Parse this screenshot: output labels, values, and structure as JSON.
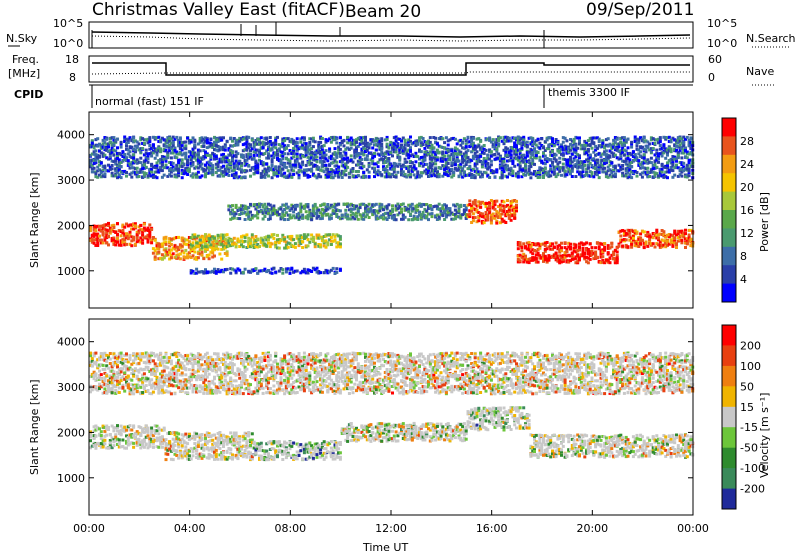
{
  "header": {
    "title": "Christmas Valley East (fitACF)",
    "beam": "Beam 20",
    "date": "09/Sep/2011"
  },
  "strip": {
    "nsky_label": "N.Sky",
    "nsearch_label": "N.Search",
    "nsky_ticks": [
      "10^5",
      "10^0"
    ],
    "nsearch_ticks": [
      "10^5",
      "10^0"
    ],
    "freq_label": [
      "Freq.",
      "[MHz]"
    ],
    "freq_ticks": [
      "18",
      "8"
    ],
    "nave_label": "Nave",
    "nave_ticks": [
      "60",
      "0"
    ],
    "cpid_label": "CPID",
    "cpid_modes": [
      "normal (fast) 151 IF",
      "themis 3300 IF"
    ]
  },
  "colors": {
    "power": [
      "#0000ff",
      "#2a3fa8",
      "#3d6ea8",
      "#4a9a6f",
      "#5aa84a",
      "#a8c83a",
      "#f5c400",
      "#f39c12",
      "#e8541d",
      "#ff0000"
    ],
    "velocity": [
      "#1f2a9a",
      "#3a8a5a",
      "#2e8b2e",
      "#6cc63a",
      "#c8c8c8",
      "#f0b400",
      "#ef7f10",
      "#e84010",
      "#ff0000"
    ]
  },
  "chart_data": [
    {
      "type": "heatmap",
      "quantity": "Power",
      "ylabel": "Slant Range [km]",
      "xlabel": "Time UT",
      "ylim": [
        180,
        4500
      ],
      "xlim": [
        0,
        24
      ],
      "x_ticks": [
        "00:00",
        "04:00",
        "08:00",
        "12:00",
        "16:00",
        "20:00",
        "00:00"
      ],
      "y_ticks": [
        1000,
        2000,
        3000,
        4000
      ],
      "colorbar": {
        "label": "Power [dB]",
        "ticks": [
          4,
          8,
          12,
          16,
          20,
          24,
          28
        ]
      },
      "bands": [
        {
          "start": 0.0,
          "end": 2.5,
          "center": 1800,
          "width": 500,
          "level": 0.9
        },
        {
          "start": 2.5,
          "end": 5.5,
          "center": 1500,
          "width": 500,
          "level": 0.75
        },
        {
          "start": 4.0,
          "end": 10.0,
          "center": 1650,
          "width": 300,
          "level": 0.55
        },
        {
          "start": 5.5,
          "end": 15.0,
          "center": 2300,
          "width": 350,
          "level": 0.3
        },
        {
          "start": 15.0,
          "end": 17.0,
          "center": 2300,
          "width": 500,
          "level": 0.85
        },
        {
          "start": 17.0,
          "end": 21.0,
          "center": 1400,
          "width": 450,
          "level": 0.95
        },
        {
          "start": 21.0,
          "end": 24.0,
          "center": 1700,
          "width": 400,
          "level": 0.85
        },
        {
          "start": 4.0,
          "end": 10.0,
          "center": 1000,
          "width": 120,
          "level": 0.15
        },
        {
          "start": 0.0,
          "end": 24.0,
          "center": 3500,
          "width": 900,
          "level": 0.2
        }
      ]
    },
    {
      "type": "heatmap",
      "quantity": "Velocity",
      "ylabel": "Slant Range [km]",
      "xlabel": "Time UT",
      "ylim": [
        180,
        4500
      ],
      "xlim": [
        0,
        24
      ],
      "x_ticks": [
        "00:00",
        "04:00",
        "08:00",
        "12:00",
        "16:00",
        "20:00",
        "00:00"
      ],
      "y_ticks": [
        1000,
        2000,
        3000,
        4000
      ],
      "colorbar": {
        "label": "Velocity [m s⁻¹]",
        "ticks": [
          200,
          100,
          50,
          15,
          -15,
          -50,
          -100,
          -200
        ]
      },
      "bands": [
        {
          "start": 0.0,
          "end": 3.0,
          "center": 1900,
          "width": 500,
          "level": 0.5
        },
        {
          "start": 3.0,
          "end": 6.5,
          "center": 1700,
          "width": 600,
          "level": 0.55
        },
        {
          "start": 6.5,
          "end": 10.0,
          "center": 1600,
          "width": 400,
          "level": 0.3
        },
        {
          "start": 10.0,
          "end": 15.0,
          "center": 2000,
          "width": 400,
          "level": 0.5
        },
        {
          "start": 15.0,
          "end": 17.5,
          "center": 2300,
          "width": 500,
          "level": 0.4
        },
        {
          "start": 17.5,
          "end": 24.0,
          "center": 1700,
          "width": 500,
          "level": 0.5
        },
        {
          "start": 0.0,
          "end": 24.0,
          "center": 3300,
          "width": 900,
          "level": 0.6
        }
      ]
    }
  ]
}
